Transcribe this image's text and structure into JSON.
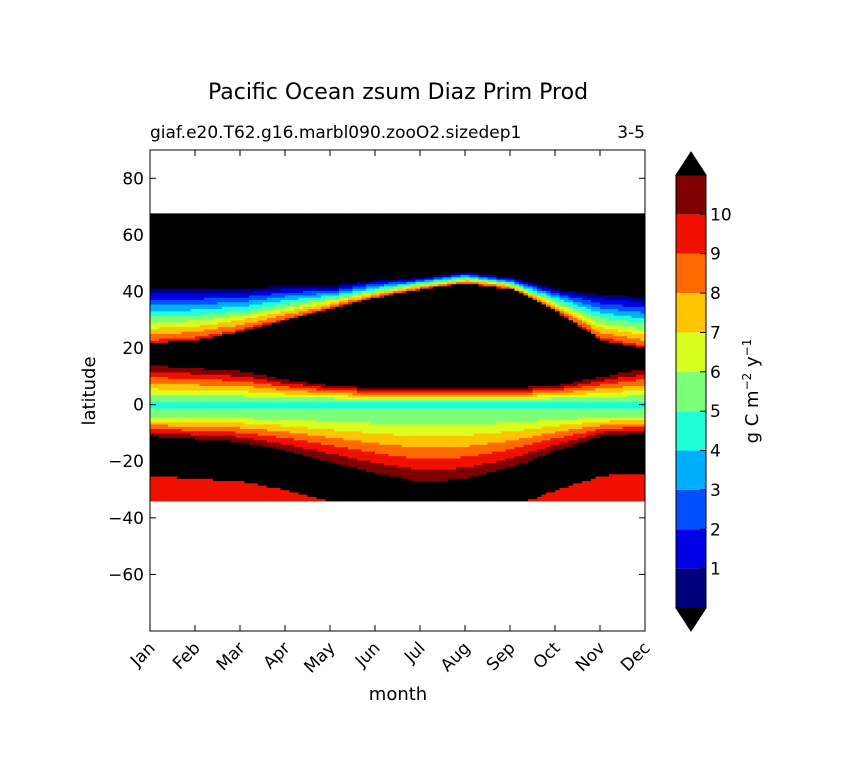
{
  "chart_data": {
    "type": "heatmap",
    "title": "Pacific Ocean zsum Diaz Prim Prod",
    "subtitle_left": "giaf.e20.T62.g16.marbl090.zooO2.sizedep1",
    "subtitle_right": "3-5",
    "xlabel": "month",
    "ylabel": "latitude",
    "x_categories": [
      "Jan",
      "Feb",
      "Mar",
      "Apr",
      "May",
      "Jun",
      "Jul",
      "Aug",
      "Sep",
      "Oct",
      "Nov",
      "Dec"
    ],
    "ylim": [
      -80,
      90
    ],
    "y_ticks": [
      80,
      60,
      40,
      20,
      0,
      -20,
      -40,
      -60
    ],
    "y_tick_labels": [
      "80",
      "60",
      "40",
      "20",
      "0",
      "−20",
      "−40",
      "−60"
    ],
    "data_lat_range": [
      -34,
      67
    ],
    "colorbar": {
      "label_main": "g C m",
      "label_exp1": "−2",
      "label_mid": " y",
      "label_exp2": "−1",
      "ticks": [
        "1",
        "2",
        "3",
        "4",
        "5",
        "6",
        "7",
        "8",
        "9",
        "10"
      ],
      "levels": [
        0,
        1,
        2,
        3,
        4,
        5,
        6,
        7,
        8,
        9,
        10,
        11
      ],
      "colors": [
        "#00007f",
        "#0000e6",
        "#0050ff",
        "#00b0ff",
        "#1fffd8",
        "#7cff79",
        "#d8ff1f",
        "#ffc400",
        "#ff6a00",
        "#f01000",
        "#7f0000"
      ],
      "over_color": "#000000",
      "under_color": "#000000",
      "extend": "both"
    },
    "months_num": [
      1,
      2,
      3,
      4,
      5,
      6,
      7,
      8,
      9,
      10,
      11,
      12
    ],
    "series": [
      {
        "name": "arctic_mask_lower",
        "values": [
          41,
          41,
          41,
          42,
          42,
          44,
          45,
          47,
          45,
          41,
          39,
          38
        ]
      },
      {
        "name": "north_top",
        "values": [
          67,
          67,
          67,
          67,
          67,
          67,
          67,
          67,
          67,
          67,
          67,
          67
        ]
      },
      {
        "name": "north_band_mid",
        "values": [
          22,
          23,
          26,
          30,
          34,
          38,
          41,
          43,
          41,
          33,
          23,
          20
        ]
      },
      {
        "name": "north_core_bottom",
        "values": [
          13,
          12,
          11,
          8,
          6,
          5,
          5,
          5,
          5,
          6,
          9,
          12
        ]
      },
      {
        "name": "south_core_top",
        "values": [
          -11,
          -12,
          -13,
          -16,
          -20,
          -24,
          -27,
          -26,
          -22,
          -16,
          -11,
          -10
        ]
      },
      {
        "name": "south_bottom",
        "values": [
          -34,
          -34,
          -34,
          -34,
          -34,
          -34,
          -34,
          -34,
          -34,
          -34,
          -34,
          -34
        ]
      }
    ]
  }
}
